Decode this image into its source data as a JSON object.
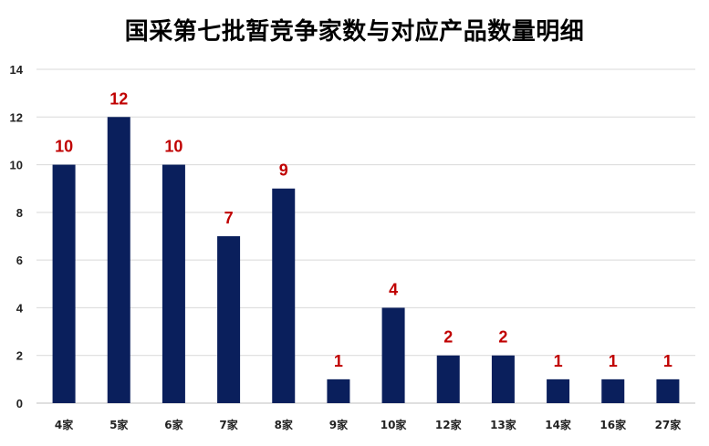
{
  "chart_data": {
    "type": "bar",
    "title": "国采第七批暂竞争家数与对应产品数量明细",
    "xlabel": "",
    "ylabel": "",
    "categories": [
      "4家",
      "5家",
      "6家",
      "7家",
      "8家",
      "9家",
      "10家",
      "12家",
      "13家",
      "14家",
      "16家",
      "27家"
    ],
    "values": [
      10,
      12,
      10,
      7,
      9,
      1,
      4,
      2,
      2,
      1,
      1,
      1
    ],
    "ylim": [
      0,
      14
    ],
    "yticks": [
      0,
      2,
      4,
      6,
      8,
      10,
      12,
      14
    ],
    "grid": true,
    "legend": "none",
    "colors": {
      "bar": "#0a1f5c",
      "data_label": "#c00000",
      "grid": "#d9d9d9"
    }
  }
}
